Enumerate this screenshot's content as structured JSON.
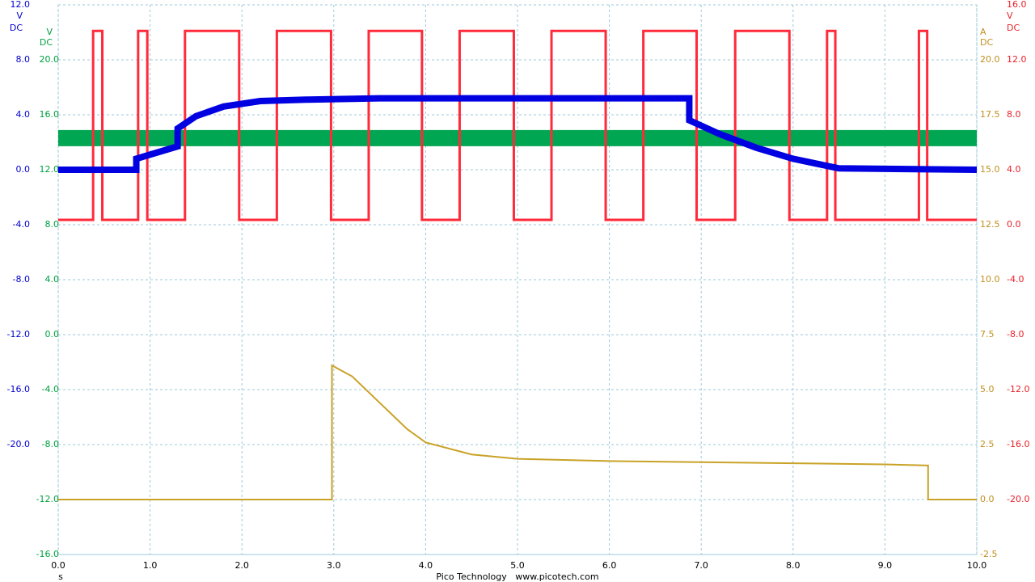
{
  "chart_data": {
    "type": "line",
    "xlim": [
      0,
      10
    ],
    "xticks": [
      {
        "value": 0,
        "label": "0.0"
      },
      {
        "value": 1,
        "label": "1.0"
      },
      {
        "value": 2,
        "label": "2.0"
      },
      {
        "value": 3,
        "label": "3.0"
      },
      {
        "value": 4,
        "label": "4.0"
      },
      {
        "value": 5,
        "label": "5.0"
      },
      {
        "value": 6,
        "label": "6.0"
      },
      {
        "value": 7,
        "label": "7.0"
      },
      {
        "value": 8,
        "label": "8.0"
      },
      {
        "value": 9,
        "label": "9.0"
      },
      {
        "value": 10,
        "label": "10.0"
      }
    ],
    "x_label": "s",
    "footer": "Pico Technology   www.picotech.com",
    "grid": true,
    "axes": [
      {
        "color": "#0000cc",
        "units": [
          "V",
          "DC"
        ],
        "ylim": [
          -28,
          12
        ],
        "yticks": [
          {
            "value": 12,
            "label": "12.0"
          },
          {
            "value": 8,
            "label": "8.0"
          },
          {
            "value": 4,
            "label": "4.0"
          },
          {
            "value": 0,
            "label": "0.0"
          },
          {
            "value": -4,
            "label": "-4.0"
          },
          {
            "value": -8,
            "label": "-8.0"
          },
          {
            "value": -12,
            "label": "-12.0"
          },
          {
            "value": -16,
            "label": "-16.0"
          },
          {
            "value": -20,
            "label": "-20.0"
          }
        ]
      },
      {
        "color": "#00a040",
        "units": [
          "V",
          "DC"
        ],
        "ylim": [
          -16,
          24
        ],
        "yticks": [
          {
            "value": 20,
            "label": "20.0"
          },
          {
            "value": 16,
            "label": "16.0"
          },
          {
            "value": 12,
            "label": "12.0"
          },
          {
            "value": 8,
            "label": "8.0"
          },
          {
            "value": 4,
            "label": "4.0"
          },
          {
            "value": 0,
            "label": "0.0"
          },
          {
            "value": -4,
            "label": "-4.0"
          },
          {
            "value": -8,
            "label": "-8.0"
          },
          {
            "value": -12,
            "label": "-12.0"
          },
          {
            "value": -16,
            "label": "-16.0"
          }
        ]
      },
      {
        "color": "#c09020",
        "units": [
          "A",
          "DC"
        ],
        "ylim": [
          -2.5,
          22.5
        ],
        "yticks": [
          {
            "value": 20,
            "label": "20.0"
          },
          {
            "value": 17.5,
            "label": "17.5"
          },
          {
            "value": 15,
            "label": "15.0"
          },
          {
            "value": 12.5,
            "label": "12.5"
          },
          {
            "value": 10,
            "label": "10.0"
          },
          {
            "value": 7.5,
            "label": "7.5"
          },
          {
            "value": 5,
            "label": "5.0"
          },
          {
            "value": 2.5,
            "label": "2.5"
          },
          {
            "value": 0,
            "label": "0.0"
          },
          {
            "value": -2.5,
            "label": "-2.5"
          }
        ]
      },
      {
        "color": "#e8202a",
        "units": [
          "V",
          "DC"
        ],
        "ylim": [
          -24,
          16
        ],
        "yticks": [
          {
            "value": 16,
            "label": "16.0"
          },
          {
            "value": 12,
            "label": "12.0"
          },
          {
            "value": 8,
            "label": "8.0"
          },
          {
            "value": 4,
            "label": "4.0"
          },
          {
            "value": 0,
            "label": "0.0"
          },
          {
            "value": -4,
            "label": "-4.0"
          },
          {
            "value": -8,
            "label": "-8.0"
          },
          {
            "value": -12,
            "label": "-12.0"
          },
          {
            "value": -16,
            "label": "-16.0"
          },
          {
            "value": -20,
            "label": "-20.0"
          }
        ]
      }
    ],
    "series": [
      {
        "axis": 1,
        "color": "#00a651",
        "x": [
          0,
          10
        ],
        "values": [
          14.3,
          14.3
        ]
      },
      {
        "axis": 3,
        "color": "#ff2a3a",
        "x": [
          0,
          0.38,
          0.38,
          0.48,
          0.48,
          0.87,
          0.87,
          0.97,
          0.97,
          1.38,
          1.38,
          1.97,
          1.97,
          2.38,
          2.38,
          2.97,
          2.97,
          3.38,
          3.38,
          3.96,
          3.96,
          4.37,
          4.37,
          4.96,
          4.96,
          5.37,
          5.37,
          5.96,
          5.96,
          6.37,
          6.37,
          6.95,
          6.95,
          7.37,
          7.37,
          7.96,
          7.96,
          8.37,
          8.37,
          8.46,
          8.46,
          9.37,
          9.37,
          9.46,
          9.46,
          10
        ],
        "values": [
          0.35,
          0.35,
          14.1,
          14.1,
          0.35,
          0.35,
          14.1,
          14.1,
          0.35,
          0.35,
          14.1,
          14.1,
          0.35,
          0.35,
          14.1,
          14.1,
          0.35,
          0.35,
          14.1,
          14.1,
          0.35,
          0.35,
          14.1,
          14.1,
          0.35,
          0.35,
          14.1,
          14.1,
          0.35,
          0.35,
          14.1,
          14.1,
          0.35,
          0.35,
          14.1,
          14.1,
          0.35,
          0.35,
          14.1,
          14.1,
          0.35,
          0.35,
          14.1,
          14.1,
          0.35,
          0.35
        ]
      },
      {
        "axis": 0,
        "color": "#0000e0",
        "x": [
          0,
          0.85,
          0.85,
          1.3,
          1.3,
          1.5,
          1.8,
          2.2,
          2.7,
          3.5,
          6.87,
          6.87,
          7.2,
          7.6,
          8.0,
          8.5,
          10
        ],
        "values": [
          0,
          0,
          0.8,
          1.7,
          3.0,
          3.9,
          4.6,
          5.0,
          5.1,
          5.2,
          5.2,
          3.6,
          2.6,
          1.6,
          0.8,
          0.1,
          0
        ]
      },
      {
        "axis": 2,
        "color": "#c9a227",
        "x": [
          0,
          2.98,
          2.98,
          3.2,
          3.5,
          3.8,
          4.0,
          4.5,
          5,
          6,
          7,
          8,
          9,
          9.47,
          9.47,
          10
        ],
        "values": [
          0,
          0,
          6.1,
          5.6,
          4.4,
          3.2,
          2.6,
          2.05,
          1.85,
          1.75,
          1.7,
          1.65,
          1.6,
          1.55,
          0,
          0
        ]
      }
    ]
  }
}
